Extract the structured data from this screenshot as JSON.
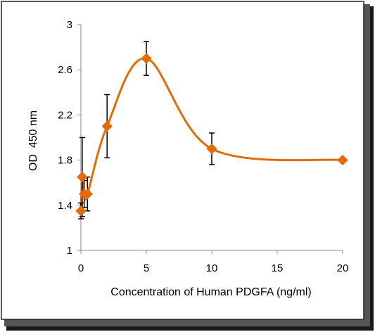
{
  "chart_data": {
    "type": "scatter",
    "xlabel": "Concentration of Human PDGFA (ng/ml)",
    "ylabel": "OD  450 nm",
    "xlim": [
      0,
      20
    ],
    "ylim": [
      1,
      3
    ],
    "x_ticks": [
      "0",
      "5",
      "10",
      "15",
      "20"
    ],
    "y_ticks": [
      "1",
      "1.4",
      "1.8",
      "2.2",
      "2.6",
      "3"
    ],
    "x_tick_values": [
      0,
      5,
      10,
      15,
      20
    ],
    "y_tick_values": [
      1,
      1.4,
      1.8,
      2.2,
      2.6,
      3
    ],
    "series": [
      {
        "color": "#E36C0A",
        "marker": "diamond",
        "line": "smooth",
        "points": [
          {
            "x": 0,
            "y": 1.35,
            "err": 0.07
          },
          {
            "x": 0.1,
            "y": 1.65,
            "err": 0.35
          },
          {
            "x": 0.25,
            "y": 1.5,
            "err": 0.12
          },
          {
            "x": 0.5,
            "y": 1.5,
            "err": 0.15
          },
          {
            "x": 2,
            "y": 2.1,
            "err": 0.28
          },
          {
            "x": 5,
            "y": 2.7,
            "err": 0.15
          },
          {
            "x": 10,
            "y": 1.9,
            "err": 0.14
          },
          {
            "x": 20,
            "y": 1.8,
            "err": 0
          }
        ]
      }
    ],
    "grid": false,
    "legend": "none"
  }
}
